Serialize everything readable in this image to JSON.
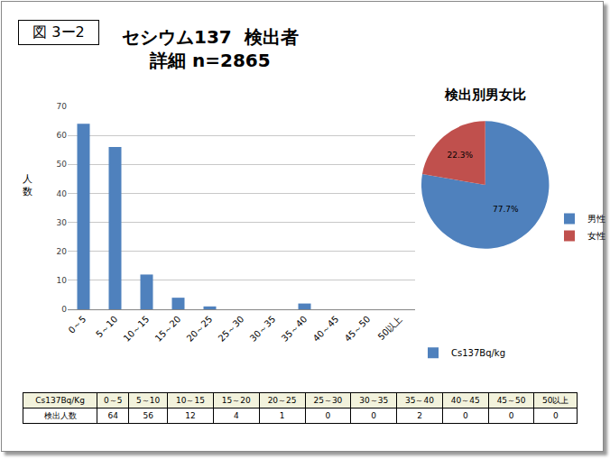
{
  "figure_label": "図 3ー2",
  "chart_data": [
    {
      "type": "bar",
      "title": "セシウム137  検出者\n詳細 n=2865",
      "y_label": "人数",
      "categories": [
        "0～5",
        "5～10",
        "10～15",
        "15～20",
        "20～25",
        "25～30",
        "30～35",
        "35～40",
        "40～45",
        "45～50",
        "50以上"
      ],
      "series": [
        {
          "name": "Cs137Bq/kg",
          "color": "#4f81bd",
          "values": [
            64,
            56,
            12,
            4,
            1,
            0,
            0,
            2,
            0,
            0,
            0
          ]
        }
      ],
      "ylim": [
        0,
        70
      ],
      "yticks": [
        0,
        10,
        20,
        30,
        40,
        50,
        60,
        70
      ],
      "grid": true,
      "legend": "bottom right"
    },
    {
      "type": "pie",
      "title": "検出別男女比",
      "categories": [
        "男性",
        "女性"
      ],
      "values": [
        77.7,
        22.3
      ],
      "value_labels": [
        "77.7%",
        "22.3%"
      ],
      "colors": [
        "#4f81bd",
        "#c0504d"
      ],
      "legend": "right"
    }
  ],
  "table": {
    "header": [
      "Cs137Bq/Kg",
      "0～5",
      "5～10",
      "10～15",
      "15～20",
      "20～25",
      "25～30",
      "30～35",
      "35～40",
      "40～45",
      "45～50",
      "50以上"
    ],
    "rows": [
      [
        "検出人数",
        64,
        56,
        12,
        4,
        1,
        0,
        0,
        2,
        0,
        0,
        0
      ]
    ]
  }
}
